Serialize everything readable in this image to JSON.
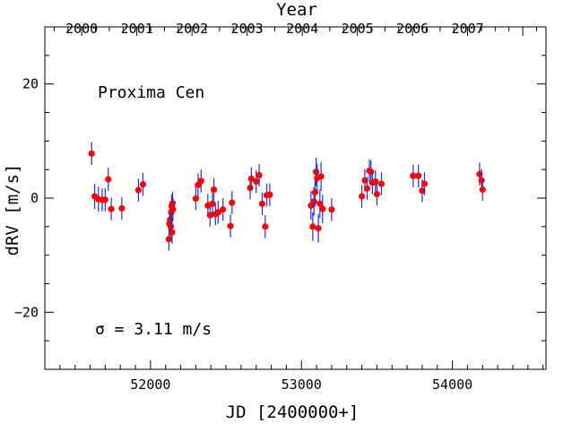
{
  "chart_data": {
    "type": "scatter",
    "annotation_title": "Proxima Cen",
    "annotation_sigma": "σ =  3.11 m/s",
    "xlabel": "JD [2400000+]",
    "ylabel": "dRV [m/s]",
    "top_axis_label": "Year",
    "xlim": [
      51300,
      54620
    ],
    "ylim": [
      -30,
      30
    ],
    "x_ticks": [
      52000,
      53000,
      54000
    ],
    "x_tick_labels": [
      "52000",
      "53000",
      "54000"
    ],
    "y_ticks": [
      -20,
      0,
      20
    ],
    "y_tick_labels": [
      "−20",
      "0",
      "20"
    ],
    "top_ticks": [
      51544.5,
      51910,
      52275,
      52640,
      53005.5,
      53371,
      53736,
      54101
    ],
    "top_tick_labels": [
      "2000",
      "2001",
      "2002",
      "2003",
      "2004",
      "2005",
      "2006",
      "2007"
    ],
    "colors": {
      "points": "#ff0000",
      "error_bars": "#1f2fd6",
      "frame": "#000000"
    },
    "points": [
      {
        "x": 51610,
        "y": 7.8,
        "err": 2.0
      },
      {
        "x": 51630,
        "y": 0.3,
        "err": 2.2
      },
      {
        "x": 51655,
        "y": -0.2,
        "err": 2.2
      },
      {
        "x": 51680,
        "y": -0.3,
        "err": 2.0
      },
      {
        "x": 51700,
        "y": -0.3,
        "err": 2.0
      },
      {
        "x": 51720,
        "y": 3.3,
        "err": 2.0
      },
      {
        "x": 51740,
        "y": -1.9,
        "err": 2.0
      },
      {
        "x": 51810,
        "y": -1.8,
        "err": 2.0
      },
      {
        "x": 51920,
        "y": 1.4,
        "err": 2.0
      },
      {
        "x": 51950,
        "y": 2.4,
        "err": 2.0
      },
      {
        "x": 52122,
        "y": -7.2,
        "err": 2.0
      },
      {
        "x": 52126,
        "y": -4.5,
        "err": 2.0
      },
      {
        "x": 52130,
        "y": -3.8,
        "err": 2.0
      },
      {
        "x": 52134,
        "y": -5.0,
        "err": 2.0
      },
      {
        "x": 52137,
        "y": -2.5,
        "err": 2.0
      },
      {
        "x": 52140,
        "y": -1.4,
        "err": 2.0
      },
      {
        "x": 52143,
        "y": -6.0,
        "err": 2.0
      },
      {
        "x": 52146,
        "y": -0.9,
        "err": 2.0
      },
      {
        "x": 52149,
        "y": -2.0,
        "err": 2.0
      },
      {
        "x": 52300,
        "y": -0.1,
        "err": 2.0
      },
      {
        "x": 52315,
        "y": 2.3,
        "err": 2.0
      },
      {
        "x": 52335,
        "y": 3.0,
        "err": 2.0
      },
      {
        "x": 52380,
        "y": -1.3,
        "err": 2.0
      },
      {
        "x": 52395,
        "y": -3.0,
        "err": 2.0
      },
      {
        "x": 52410,
        "y": -1.0,
        "err": 2.0
      },
      {
        "x": 52420,
        "y": 1.5,
        "err": 2.0
      },
      {
        "x": 52430,
        "y": -2.8,
        "err": 2.0
      },
      {
        "x": 52448,
        "y": -2.5,
        "err": 2.0
      },
      {
        "x": 52480,
        "y": -2.0,
        "err": 2.0
      },
      {
        "x": 52530,
        "y": -4.9,
        "err": 2.0
      },
      {
        "x": 52540,
        "y": -0.8,
        "err": 2.0
      },
      {
        "x": 52660,
        "y": 1.8,
        "err": 2.0
      },
      {
        "x": 52668,
        "y": 3.4,
        "err": 2.0
      },
      {
        "x": 52700,
        "y": 2.9,
        "err": 2.0
      },
      {
        "x": 52720,
        "y": 4.0,
        "err": 2.0
      },
      {
        "x": 52740,
        "y": -1.0,
        "err": 2.0
      },
      {
        "x": 52760,
        "y": -5.0,
        "err": 2.0
      },
      {
        "x": 52770,
        "y": 0.5,
        "err": 2.0
      },
      {
        "x": 52790,
        "y": 0.6,
        "err": 2.0
      },
      {
        "x": 53063,
        "y": -1.3,
        "err": 2.5
      },
      {
        "x": 53075,
        "y": -5.0,
        "err": 2.5
      },
      {
        "x": 53083,
        "y": -0.6,
        "err": 2.5
      },
      {
        "x": 53090,
        "y": 1.0,
        "err": 2.5
      },
      {
        "x": 53097,
        "y": 4.6,
        "err": 2.5
      },
      {
        "x": 53104,
        "y": 3.5,
        "err": 2.5
      },
      {
        "x": 53112,
        "y": -5.3,
        "err": 2.5
      },
      {
        "x": 53122,
        "y": -1.0,
        "err": 2.5
      },
      {
        "x": 53130,
        "y": 3.8,
        "err": 2.5
      },
      {
        "x": 53140,
        "y": -1.9,
        "err": 2.5
      },
      {
        "x": 53200,
        "y": -2.0,
        "err": 2.0
      },
      {
        "x": 53400,
        "y": 0.3,
        "err": 2.0
      },
      {
        "x": 53420,
        "y": 3.1,
        "err": 2.0
      },
      {
        "x": 53435,
        "y": 1.7,
        "err": 2.0
      },
      {
        "x": 53450,
        "y": 4.8,
        "err": 2.0
      },
      {
        "x": 53460,
        "y": 4.6,
        "err": 2.0
      },
      {
        "x": 53470,
        "y": 2.7,
        "err": 2.0
      },
      {
        "x": 53490,
        "y": 2.9,
        "err": 2.0
      },
      {
        "x": 53500,
        "y": 0.7,
        "err": 2.0
      },
      {
        "x": 53530,
        "y": 2.5,
        "err": 2.0
      },
      {
        "x": 53740,
        "y": 3.9,
        "err": 2.0
      },
      {
        "x": 53775,
        "y": 3.9,
        "err": 2.0
      },
      {
        "x": 53800,
        "y": 1.3,
        "err": 2.0
      },
      {
        "x": 53815,
        "y": 2.5,
        "err": 2.0
      },
      {
        "x": 54180,
        "y": 4.2,
        "err": 2.0
      },
      {
        "x": 54193,
        "y": 3.1,
        "err": 2.0
      },
      {
        "x": 54200,
        "y": 1.5,
        "err": 2.0
      }
    ]
  }
}
